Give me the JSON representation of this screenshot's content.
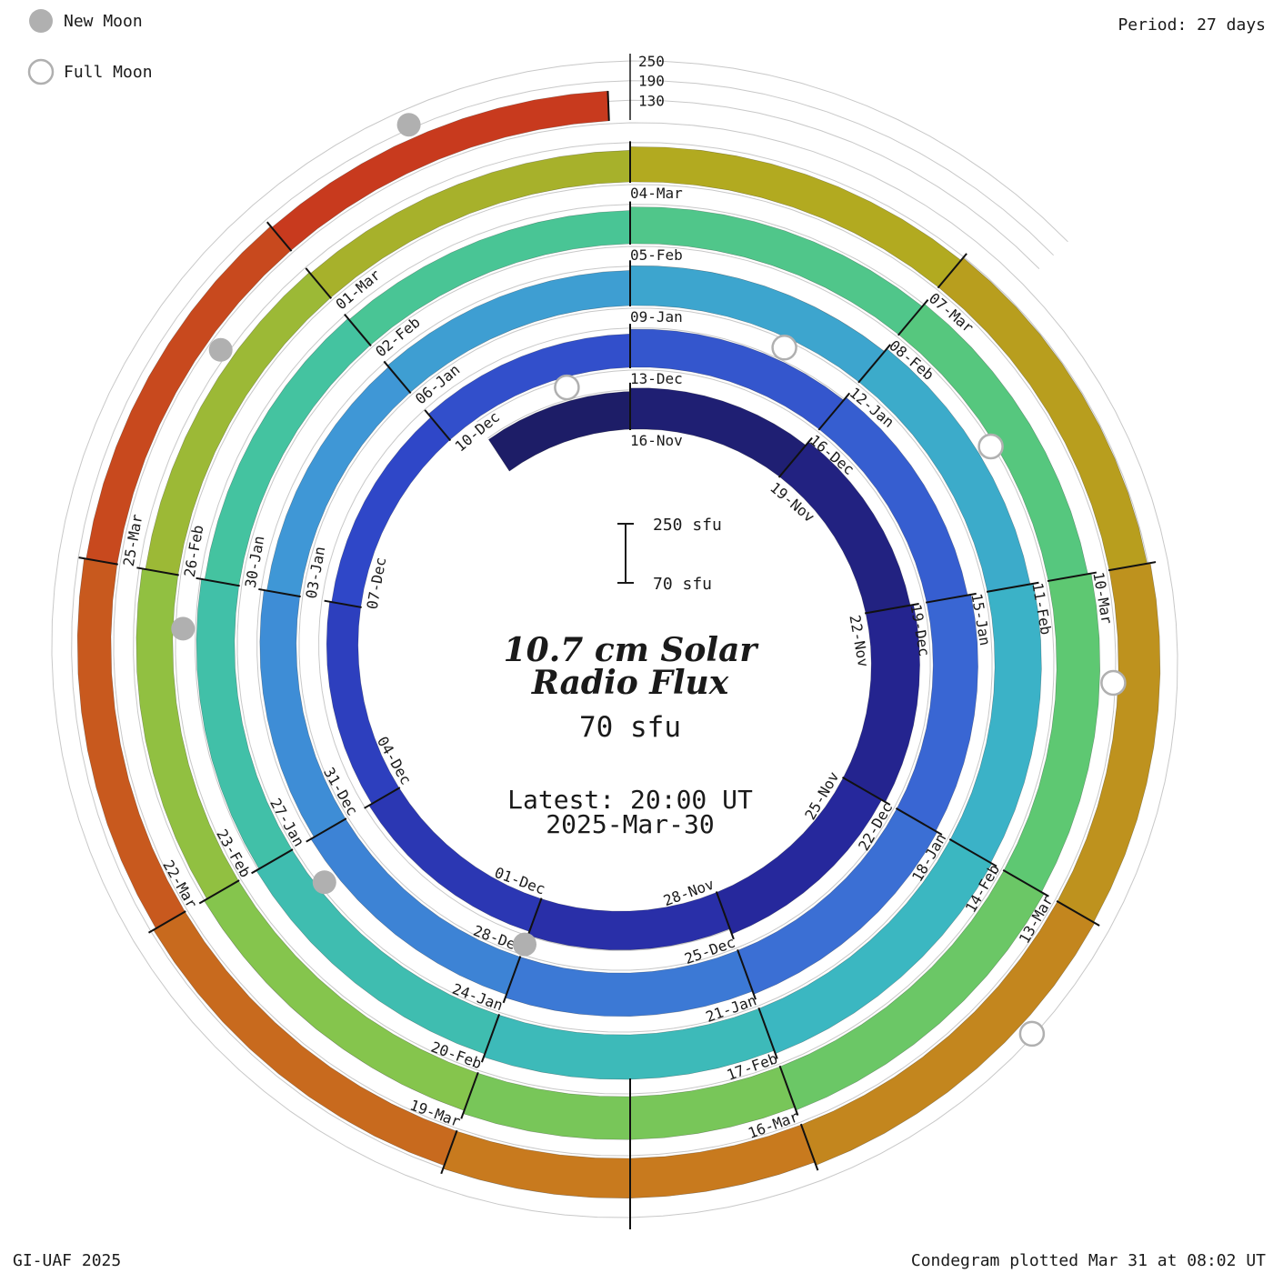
{
  "header": {
    "legend": {
      "new_moon": "New Moon",
      "full_moon": "Full Moon"
    },
    "period": "Period: 27 days"
  },
  "footer": {
    "credit": "GI-UAF 2025",
    "plotted": "Condegram plotted Mar 31 at 08:02 UT"
  },
  "center": {
    "title_line1": "10.7 cm Solar",
    "title_line2": "Radio Flux",
    "flux_label": "70 sfu",
    "latest_line1": "Latest: 20:00 UT",
    "latest_line2": "2025-Mar-30",
    "scalebar_top_label": "250 sfu",
    "scalebar_bottom_label": "70 sfu"
  },
  "chart_data": {
    "type": "spiral-condegram",
    "title": "10.7 cm Solar Radio Flux",
    "period_days": 27,
    "baseline_sfu": 70,
    "scale_top_sfu": 250,
    "radial_gridlines_sfu": [
      130,
      190,
      250
    ],
    "time_start": "2024-Nov-13",
    "time_end": "2025-Mar-30 20:00 UT",
    "segments": [
      {
        "label": "",
        "t": -2.5,
        "flux": 185
      },
      {
        "label": "16-Nov",
        "t": 0,
        "flux": 195
      },
      {
        "label": "19-Nov",
        "t": 3,
        "flux": 208
      },
      {
        "label": "22-Nov",
        "t": 6,
        "flux": 218
      },
      {
        "label": "25-Nov",
        "t": 9,
        "flux": 205
      },
      {
        "label": "28-Nov",
        "t": 12,
        "flux": 188
      },
      {
        "label": "01-Dec",
        "t": 15,
        "flux": 176
      },
      {
        "label": "04-Dec",
        "t": 18,
        "flux": 166
      },
      {
        "label": "07-Dec",
        "t": 21,
        "flux": 160
      },
      {
        "label": "10-Dec",
        "t": 24,
        "flux": 172
      },
      {
        "label": "13-Dec",
        "t": 27,
        "flux": 186
      },
      {
        "label": "16-Dec",
        "t": 30,
        "flux": 197
      },
      {
        "label": "19-Dec",
        "t": 33,
        "flux": 207
      },
      {
        "label": "22-Dec",
        "t": 36,
        "flux": 212
      },
      {
        "label": "25-Dec",
        "t": 39,
        "flux": 202
      },
      {
        "label": "28-Dec",
        "t": 42,
        "flux": 192
      },
      {
        "label": "31-Dec",
        "t": 45,
        "flux": 181
      },
      {
        "label": "03-Jan",
        "t": 48,
        "flux": 172
      },
      {
        "label": "06-Jan",
        "t": 51,
        "flux": 177
      },
      {
        "label": "09-Jan",
        "t": 54,
        "flux": 191
      },
      {
        "label": "12-Jan",
        "t": 57,
        "flux": 202
      },
      {
        "label": "15-Jan",
        "t": 60,
        "flux": 212
      },
      {
        "label": "18-Jan",
        "t": 63,
        "flux": 216
      },
      {
        "label": "21-Jan",
        "t": 66,
        "flux": 206
      },
      {
        "label": "24-Jan",
        "t": 69,
        "flux": 196
      },
      {
        "label": "27-Jan",
        "t": 72,
        "flux": 186
      },
      {
        "label": "30-Jan",
        "t": 75,
        "flux": 176
      },
      {
        "label": "02-Feb",
        "t": 78,
        "flux": 171
      },
      {
        "label": "05-Feb",
        "t": 81,
        "flux": 182
      },
      {
        "label": "08-Feb",
        "t": 84,
        "flux": 192
      },
      {
        "label": "11-Feb",
        "t": 87,
        "flux": 202
      },
      {
        "label": "14-Feb",
        "t": 90,
        "flux": 211
      },
      {
        "label": "17-Feb",
        "t": 93,
        "flux": 201
      },
      {
        "label": "20-Feb",
        "t": 96,
        "flux": 191
      },
      {
        "label": "23-Feb",
        "t": 99,
        "flux": 181
      },
      {
        "label": "26-Feb",
        "t": 102,
        "flux": 171
      },
      {
        "label": "01-Mar",
        "t": 105,
        "flux": 166
      },
      {
        "label": "04-Mar",
        "t": 108,
        "flux": 177
      },
      {
        "label": "07-Mar",
        "t": 111,
        "flux": 187
      },
      {
        "label": "10-Mar",
        "t": 114,
        "flux": 197
      },
      {
        "label": "13-Mar",
        "t": 117,
        "flux": 201
      },
      {
        "label": "16-Mar",
        "t": 120,
        "flux": 191
      },
      {
        "label": "19-Mar",
        "t": 123,
        "flux": 181
      },
      {
        "label": "22-Mar",
        "t": 126,
        "flux": 172
      },
      {
        "label": "25-Mar",
        "t": 129,
        "flux": 166
      },
      {
        "label": "",
        "t": 132,
        "flux": 161
      }
    ],
    "moon_events": [
      {
        "type": "full",
        "date": "2024-Nov-15",
        "t": -1
      },
      {
        "type": "new",
        "date": "2024-Dec-01",
        "t": 15
      },
      {
        "type": "full",
        "date": "2024-Dec-15",
        "t": 29
      },
      {
        "type": "new",
        "date": "2024-Dec-30",
        "t": 44.5
      },
      {
        "type": "full",
        "date": "2025-Jan-13",
        "t": 58.5
      },
      {
        "type": "new",
        "date": "2025-Jan-29",
        "t": 74.5
      },
      {
        "type": "full",
        "date": "2025-Feb-12",
        "t": 88
      },
      {
        "type": "new",
        "date": "2025-Feb-28",
        "t": 104
      },
      {
        "type": "full",
        "date": "2025-Mar-14",
        "t": 118
      },
      {
        "type": "new",
        "date": "2025-Mar-29",
        "t": 133.3
      }
    ],
    "colormap_stops": [
      [
        0.0,
        "#1c1c60"
      ],
      [
        0.09,
        "#26269a"
      ],
      [
        0.18,
        "#2f46c8"
      ],
      [
        0.28,
        "#3a6ad4"
      ],
      [
        0.38,
        "#3f98d6"
      ],
      [
        0.48,
        "#3ab6c4"
      ],
      [
        0.58,
        "#44c49e"
      ],
      [
        0.66,
        "#5cc874"
      ],
      [
        0.74,
        "#8cc446"
      ],
      [
        0.82,
        "#b4a81e"
      ],
      [
        0.9,
        "#c87c1e"
      ],
      [
        1.0,
        "#c8321e"
      ]
    ],
    "colors": {
      "annotation_red": "#e8362e",
      "grid_gray": "#c8c8c8",
      "moon_gray": "#b0b0b0",
      "label_dark": "#2a2a2a"
    }
  }
}
